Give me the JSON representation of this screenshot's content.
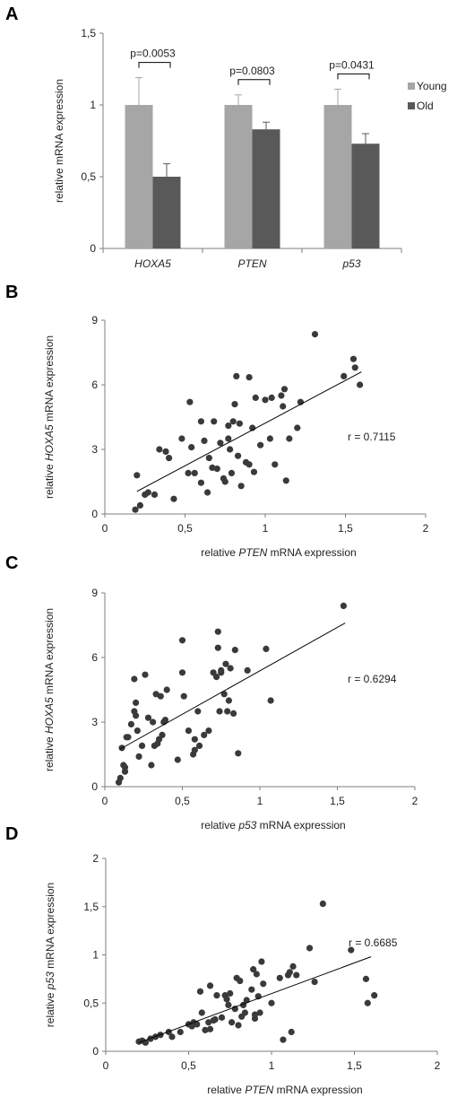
{
  "chart_data": [
    {
      "panel": "A",
      "type": "bar",
      "categories": [
        "HOXA5",
        "PTEN",
        "p53"
      ],
      "series": [
        {
          "name": "Young",
          "values": [
            1,
            1,
            1
          ],
          "errors": [
            0.19,
            0.07,
            0.11
          ],
          "color": "#a6a6a6"
        },
        {
          "name": "Old",
          "values": [
            0.5,
            0.83,
            0.73
          ],
          "errors": [
            0.09,
            0.05,
            0.07
          ],
          "color": "#595959"
        }
      ],
      "significance": [
        "p=0.0053",
        "p=0.0803",
        "p=0.0431"
      ],
      "ylabel": "relative  mRNA expression",
      "ylim": [
        0,
        1.5
      ],
      "yticks": [
        "0",
        "0,5",
        "1",
        "1,5"
      ],
      "legend": "right"
    },
    {
      "panel": "B",
      "type": "scatter",
      "xlabel_pre": "relative ",
      "xlabel_gene": "PTEN",
      "xlabel_post": " mRNA expression",
      "ylabel_pre": "relative ",
      "ylabel_gene": "HOXA5",
      "ylabel_post": " mRNA expression",
      "xlim": [
        0,
        2
      ],
      "ylim": [
        0,
        9
      ],
      "xticks": [
        "0",
        "0,5",
        "1",
        "1,5",
        "2"
      ],
      "yticks": [
        "0",
        "3",
        "6",
        "9"
      ],
      "annotation": "r = 0.7115",
      "trendline": [
        [
          0.2,
          1.05
        ],
        [
          1.6,
          6.6
        ]
      ],
      "points": [
        [
          0.19,
          0.2
        ],
        [
          0.2,
          1.8
        ],
        [
          0.22,
          0.4
        ],
        [
          0.25,
          0.9
        ],
        [
          0.27,
          1.0
        ],
        [
          0.31,
          0.9
        ],
        [
          0.34,
          3.0
        ],
        [
          0.38,
          2.9
        ],
        [
          0.4,
          2.6
        ],
        [
          0.43,
          0.7
        ],
        [
          0.48,
          3.5
        ],
        [
          0.52,
          1.9
        ],
        [
          0.53,
          5.2
        ],
        [
          0.54,
          3.1
        ],
        [
          0.56,
          1.9
        ],
        [
          0.6,
          1.45
        ],
        [
          0.6,
          4.3
        ],
        [
          0.62,
          3.4
        ],
        [
          0.64,
          1.0
        ],
        [
          0.65,
          2.6
        ],
        [
          0.67,
          2.15
        ],
        [
          0.68,
          4.3
        ],
        [
          0.7,
          2.1
        ],
        [
          0.72,
          3.3
        ],
        [
          0.74,
          1.65
        ],
        [
          0.75,
          1.5
        ],
        [
          0.77,
          4.1
        ],
        [
          0.77,
          3.5
        ],
        [
          0.78,
          3.0
        ],
        [
          0.79,
          1.9
        ],
        [
          0.8,
          4.3
        ],
        [
          0.81,
          5.1
        ],
        [
          0.82,
          6.4
        ],
        [
          0.83,
          2.7
        ],
        [
          0.84,
          4.2
        ],
        [
          0.85,
          1.3
        ],
        [
          0.88,
          2.4
        ],
        [
          0.9,
          6.35
        ],
        [
          0.9,
          2.3
        ],
        [
          0.92,
          4.0
        ],
        [
          0.93,
          1.95
        ],
        [
          0.94,
          5.4
        ],
        [
          0.97,
          3.2
        ],
        [
          1.0,
          5.3
        ],
        [
          1.03,
          3.5
        ],
        [
          1.04,
          5.4
        ],
        [
          1.06,
          2.3
        ],
        [
          1.1,
          5.5
        ],
        [
          1.11,
          5.0
        ],
        [
          1.12,
          5.8
        ],
        [
          1.13,
          1.55
        ],
        [
          1.15,
          3.5
        ],
        [
          1.2,
          4.0
        ],
        [
          1.22,
          5.2
        ],
        [
          1.31,
          8.35
        ],
        [
          1.49,
          6.4
        ],
        [
          1.55,
          7.2
        ],
        [
          1.56,
          6.8
        ],
        [
          1.59,
          6.0
        ]
      ]
    },
    {
      "panel": "C",
      "type": "scatter",
      "xlabel_pre": "relative ",
      "xlabel_gene": "p53",
      "xlabel_post": " mRNA expression",
      "ylabel_pre": "relative ",
      "ylabel_gene": "HOXA5",
      "ylabel_post": " mRNA expression",
      "xlim": [
        0,
        2
      ],
      "ylim": [
        0,
        9
      ],
      "xticks": [
        "0",
        "0,5",
        "1",
        "1,5",
        "2"
      ],
      "yticks": [
        "0",
        "3",
        "6",
        "9"
      ],
      "annotation": "r = 0.6294",
      "trendline": [
        [
          0.1,
          1.75
        ],
        [
          1.55,
          7.6
        ]
      ],
      "points": [
        [
          0.09,
          0.2
        ],
        [
          0.1,
          0.4
        ],
        [
          0.11,
          1.8
        ],
        [
          0.12,
          1.0
        ],
        [
          0.13,
          0.9
        ],
        [
          0.13,
          0.7
        ],
        [
          0.14,
          2.3
        ],
        [
          0.15,
          2.3
        ],
        [
          0.17,
          2.9
        ],
        [
          0.19,
          5.0
        ],
        [
          0.19,
          3.5
        ],
        [
          0.2,
          3.9
        ],
        [
          0.2,
          3.3
        ],
        [
          0.21,
          2.6
        ],
        [
          0.22,
          1.4
        ],
        [
          0.24,
          1.9
        ],
        [
          0.26,
          5.2
        ],
        [
          0.28,
          3.2
        ],
        [
          0.3,
          1.0
        ],
        [
          0.31,
          3.0
        ],
        [
          0.32,
          1.9
        ],
        [
          0.33,
          4.3
        ],
        [
          0.34,
          2.0
        ],
        [
          0.35,
          2.2
        ],
        [
          0.36,
          4.2
        ],
        [
          0.37,
          2.4
        ],
        [
          0.38,
          3.0
        ],
        [
          0.39,
          3.1
        ],
        [
          0.4,
          4.5
        ],
        [
          0.47,
          1.25
        ],
        [
          0.5,
          6.8
        ],
        [
          0.5,
          5.3
        ],
        [
          0.51,
          4.2
        ],
        [
          0.54,
          2.6
        ],
        [
          0.57,
          1.5
        ],
        [
          0.58,
          1.7
        ],
        [
          0.58,
          2.2
        ],
        [
          0.6,
          3.5
        ],
        [
          0.61,
          1.9
        ],
        [
          0.64,
          2.4
        ],
        [
          0.67,
          2.6
        ],
        [
          0.7,
          5.3
        ],
        [
          0.72,
          5.1
        ],
        [
          0.73,
          7.2
        ],
        [
          0.73,
          6.45
        ],
        [
          0.74,
          3.5
        ],
        [
          0.75,
          5.4
        ],
        [
          0.75,
          5.3
        ],
        [
          0.77,
          4.3
        ],
        [
          0.78,
          5.7
        ],
        [
          0.79,
          3.5
        ],
        [
          0.8,
          4.0
        ],
        [
          0.81,
          5.5
        ],
        [
          0.83,
          3.4
        ],
        [
          0.84,
          6.35
        ],
        [
          0.86,
          1.55
        ],
        [
          0.92,
          5.4
        ],
        [
          1.04,
          6.4
        ],
        [
          1.07,
          4.0
        ],
        [
          1.54,
          8.4
        ]
      ]
    },
    {
      "panel": "D",
      "type": "scatter",
      "xlabel_pre": "relative ",
      "xlabel_gene": "PTEN",
      "xlabel_post": " mRNA expression",
      "ylabel_pre": "relative ",
      "ylabel_gene": "p53",
      "ylabel_post": " mRNA expression",
      "xlim": [
        0,
        2
      ],
      "ylim": [
        0,
        2
      ],
      "xticks": [
        "0",
        "0,5",
        "1",
        "1,5",
        "2"
      ],
      "yticks": [
        "0",
        "0,5",
        "1",
        "1,5",
        "2"
      ],
      "annotation": "r = 0.6685",
      "trendline": [
        [
          0.2,
          0.09
        ],
        [
          1.6,
          0.98
        ]
      ],
      "points": [
        [
          0.2,
          0.1
        ],
        [
          0.22,
          0.11
        ],
        [
          0.24,
          0.09
        ],
        [
          0.27,
          0.13
        ],
        [
          0.3,
          0.15
        ],
        [
          0.33,
          0.17
        ],
        [
          0.38,
          0.2
        ],
        [
          0.4,
          0.15
        ],
        [
          0.45,
          0.2
        ],
        [
          0.5,
          0.28
        ],
        [
          0.52,
          0.26
        ],
        [
          0.53,
          0.3
        ],
        [
          0.55,
          0.28
        ],
        [
          0.57,
          0.62
        ],
        [
          0.58,
          0.4
        ],
        [
          0.6,
          0.22
        ],
        [
          0.62,
          0.3
        ],
        [
          0.63,
          0.68
        ],
        [
          0.63,
          0.23
        ],
        [
          0.65,
          0.32
        ],
        [
          0.66,
          0.33
        ],
        [
          0.67,
          0.58
        ],
        [
          0.7,
          0.35
        ],
        [
          0.72,
          0.58
        ],
        [
          0.73,
          0.54
        ],
        [
          0.74,
          0.48
        ],
        [
          0.75,
          0.6
        ],
        [
          0.76,
          0.3
        ],
        [
          0.78,
          0.44
        ],
        [
          0.79,
          0.76
        ],
        [
          0.8,
          0.27
        ],
        [
          0.81,
          0.73
        ],
        [
          0.82,
          0.36
        ],
        [
          0.83,
          0.48
        ],
        [
          0.84,
          0.4
        ],
        [
          0.85,
          0.53
        ],
        [
          0.88,
          0.64
        ],
        [
          0.89,
          0.85
        ],
        [
          0.9,
          0.34
        ],
        [
          0.9,
          0.38
        ],
        [
          0.91,
          0.8
        ],
        [
          0.92,
          0.57
        ],
        [
          0.93,
          0.4
        ],
        [
          0.94,
          0.93
        ],
        [
          0.95,
          0.7
        ],
        [
          1.0,
          0.5
        ],
        [
          1.05,
          0.76
        ],
        [
          1.07,
          0.12
        ],
        [
          1.1,
          0.79
        ],
        [
          1.11,
          0.82
        ],
        [
          1.12,
          0.2
        ],
        [
          1.13,
          0.88
        ],
        [
          1.15,
          0.79
        ],
        [
          1.23,
          1.07
        ],
        [
          1.26,
          0.72
        ],
        [
          1.31,
          1.53
        ],
        [
          1.48,
          1.05
        ],
        [
          1.57,
          0.75
        ],
        [
          1.58,
          0.5
        ],
        [
          1.62,
          0.58
        ]
      ]
    }
  ]
}
